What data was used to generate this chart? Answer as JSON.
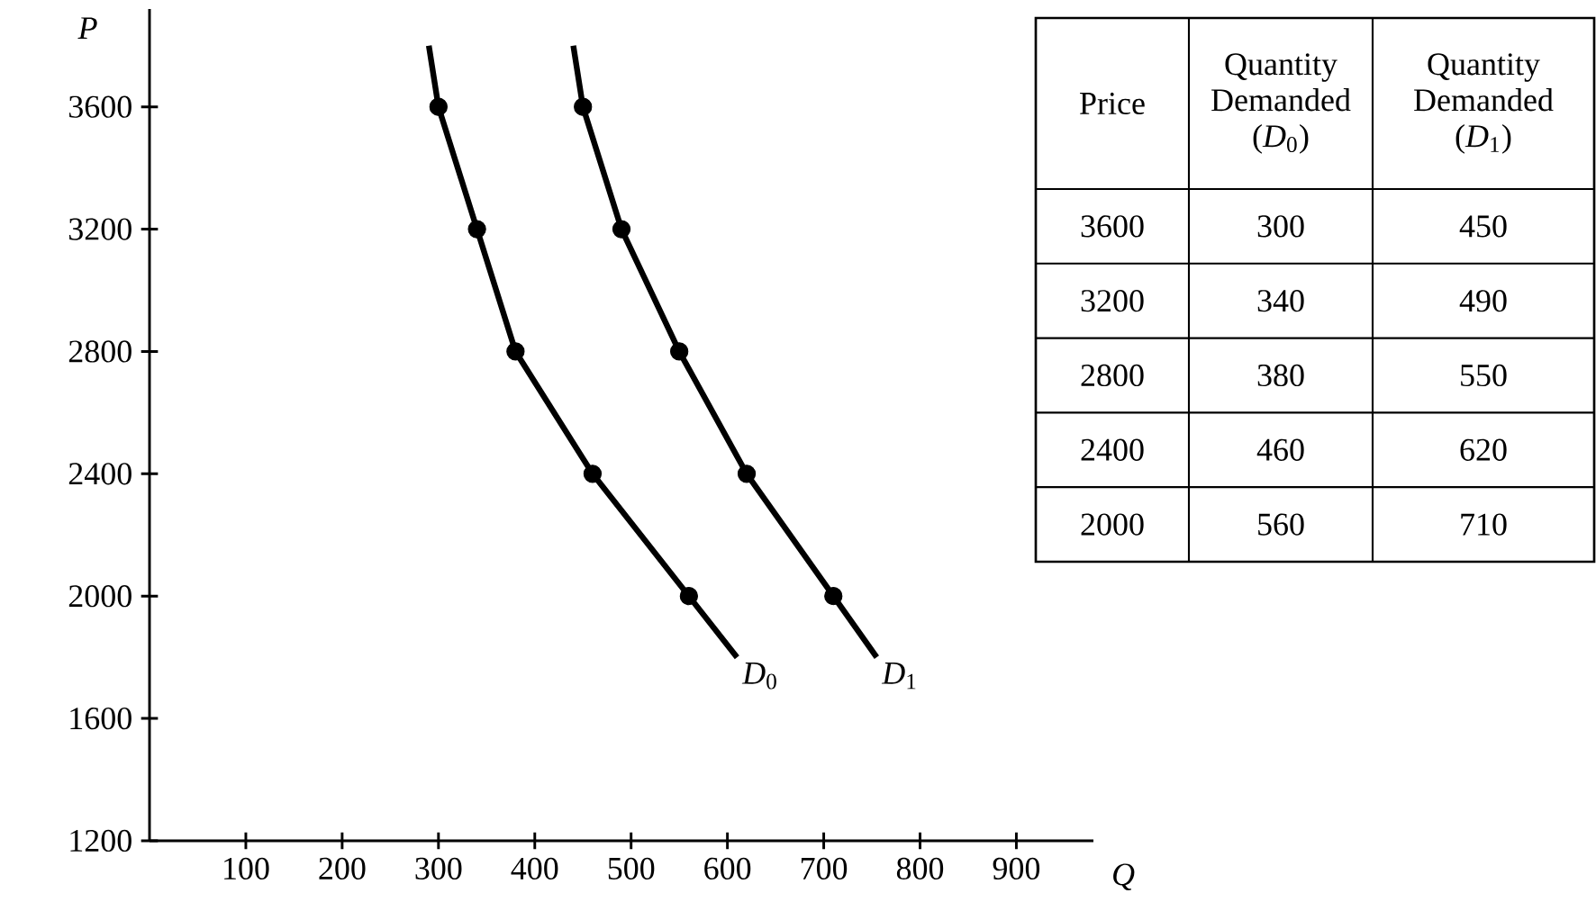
{
  "chart_data": {
    "type": "line",
    "xlabel": "Q",
    "ylabel": "P",
    "xlim": [
      0,
      980
    ],
    "ylim": [
      1200,
      3920
    ],
    "xticks": [
      100,
      200,
      300,
      400,
      500,
      600,
      700,
      800,
      900
    ],
    "yticks": [
      1200,
      1600,
      2000,
      2400,
      2800,
      3200,
      3600
    ],
    "annotations": [
      "Price",
      "Quantity Demanded (*D*$_{0}$)",
      "Quantity Demanded (*D*$_{1}$)",
      "3600",
      "300",
      "450",
      "3200",
      "340",
      "490",
      "2800",
      "380",
      "550",
      "2400",
      "460",
      "620",
      "2000",
      "560",
      "710"
    ],
    "series": [
      {
        "name": "*D*$_{0}$",
        "color": "#000000",
        "marker": "none",
        "x": [
          290,
          300,
          340,
          380,
          460,
          560,
          610
        ],
        "values": [
          3800,
          3600,
          3200,
          2800,
          2400,
          2000,
          1800
        ]
      },
      {
        "name": "*D*$_{1}$",
        "color": "#000000",
        "marker": "none",
        "x": [
          440,
          450,
          490,
          550,
          620,
          710,
          755
        ],
        "values": [
          3800,
          3600,
          3200,
          2800,
          2400,
          2000,
          1800
        ]
      },
      {
        "type": "scatter",
        "color": "#000000",
        "marker": "circle",
        "x": [
          300,
          340,
          380,
          460,
          560
        ],
        "values": [
          3600,
          3200,
          2800,
          2400,
          2000
        ]
      },
      {
        "type": "scatter",
        "color": "#000000",
        "marker": "circle",
        "x": [
          450,
          490,
          550,
          620,
          710
        ],
        "values": [
          3600,
          3200,
          2800,
          2400,
          2000
        ]
      }
    ]
  }
}
